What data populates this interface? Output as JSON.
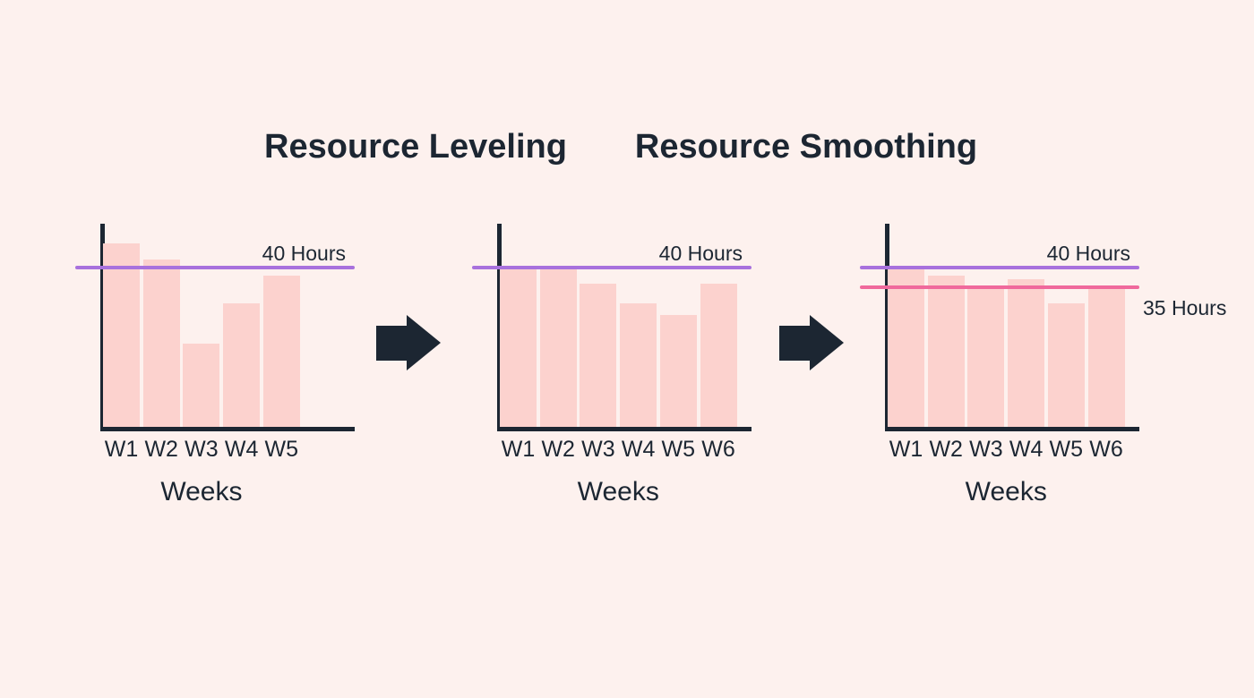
{
  "colors": {
    "background": "#fdf1ee",
    "text_dark": "#1c2632",
    "bar_fill": "#fcd2ce",
    "limit_line_purple": "#a871dd",
    "limit_line_pink": "#f0699c",
    "arrow_fill": "#1c2632"
  },
  "titles": [
    {
      "text": "Resource Leveling"
    },
    {
      "text": "Resource Smoothing"
    }
  ],
  "arrows": [
    {
      "name": "arrow-leveling"
    },
    {
      "name": "arrow-smoothing"
    }
  ],
  "chart_data": [
    {
      "type": "bar",
      "name": "before-leveling",
      "categories": [
        "W1",
        "W2",
        "W3",
        "W4",
        "W5"
      ],
      "values": [
        46,
        42,
        21,
        31,
        38
      ],
      "xlabel": "Weeks",
      "ylabel": "",
      "ylim": [
        0,
        51
      ],
      "grid": false,
      "bar_color": "#fcd2ce",
      "reference_lines": [
        {
          "label": "40 Hours",
          "value": 40,
          "color": "#a871dd",
          "label_position": "above"
        }
      ]
    },
    {
      "type": "bar",
      "name": "after-leveling",
      "categories": [
        "W1",
        "W2",
        "W3",
        "W4",
        "W5",
        "W6"
      ],
      "values": [
        40,
        40,
        36,
        31,
        28,
        36
      ],
      "xlabel": "Weeks",
      "ylabel": "",
      "ylim": [
        0,
        51
      ],
      "grid": false,
      "bar_color": "#fcd2ce",
      "reference_lines": [
        {
          "label": "40 Hours",
          "value": 40,
          "color": "#a871dd",
          "label_position": "above"
        }
      ]
    },
    {
      "type": "bar",
      "name": "after-smoothing",
      "categories": [
        "W1",
        "W2",
        "W3",
        "W4",
        "W5",
        "W6"
      ],
      "values": [
        40,
        38,
        35,
        37,
        31,
        35
      ],
      "xlabel": "Weeks",
      "ylabel": "",
      "ylim": [
        0,
        51
      ],
      "grid": false,
      "bar_color": "#fcd2ce",
      "reference_lines": [
        {
          "label": "40 Hours",
          "value": 40,
          "color": "#a871dd",
          "label_position": "above"
        },
        {
          "label": "35 Hours",
          "value": 35,
          "color": "#f0699c",
          "label_position": "right"
        }
      ]
    }
  ]
}
